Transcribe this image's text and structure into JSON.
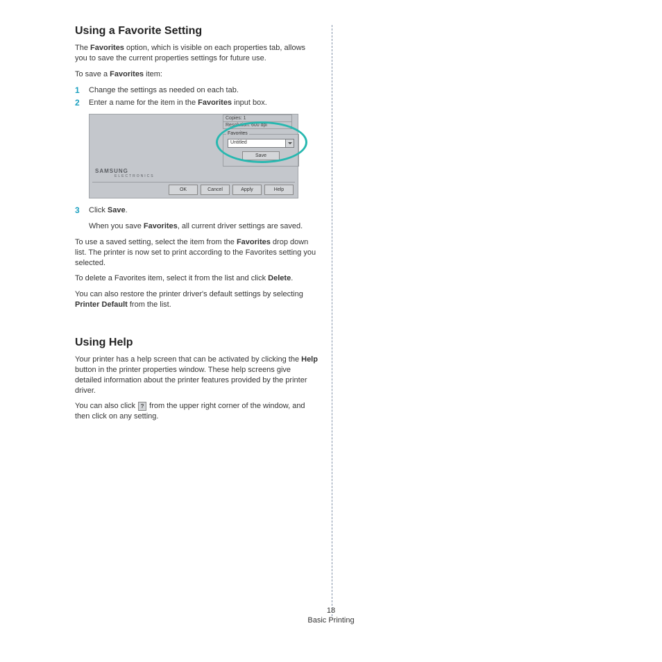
{
  "section1": {
    "heading": "Using a Favorite Setting",
    "intro_pre": "The ",
    "intro_bold": "Favorites",
    "intro_post": " option, which is visible on each properties tab, allows you to save the current properties settings for future use.",
    "to_save_pre": "To save a ",
    "to_save_bold": "Favorites",
    "to_save_post": " item:",
    "step1_num": "1",
    "step1_text": "Change the settings as needed on each tab.",
    "step2_num": "2",
    "step2_pre": "Enter a name for the item in the ",
    "step2_bold": "Favorites",
    "step2_post": " input box.",
    "step3_num": "3",
    "step3_pre": "Click ",
    "step3_bold": "Save",
    "step3_post": ".",
    "step3b_pre": "When you save ",
    "step3b_bold": "Favorites",
    "step3b_post": ", all current driver settings are saved.",
    "use_pre": "To use a saved setting, select the item from the ",
    "use_bold": "Favorites",
    "use_post": " drop down list. The printer is now set to print according to the Favorites setting you selected.",
    "delete_pre": "To delete a Favorites item, select it from the list and click ",
    "delete_bold": "Delete",
    "delete_post": ".",
    "restore_pre": "You can also restore the printer driver's default settings by selecting ",
    "restore_bold": "Printer Default",
    "restore_post": " from the list."
  },
  "mock": {
    "info_copies": "Copies: 1",
    "info_res": "Resolution: 600 dpi",
    "fav_legend": "Favorites",
    "combo_value": "Untitled",
    "save_btn": "Save",
    "brand": "SAMSUNG",
    "brand_sub": "ELECTRONICS",
    "btn_ok": "OK",
    "btn_cancel": "Cancel",
    "btn_apply": "Apply",
    "btn_help": "Help",
    "colors": {
      "dialog_bg": "#c4c7cc",
      "highlight": "#28b8b0",
      "step_num": "#1aa0c0"
    }
  },
  "section2": {
    "heading": "Using Help",
    "p1_pre": "Your printer has a help screen that can be activated by clicking the ",
    "p1_bold": "Help",
    "p1_post": " button in the printer properties window. These help screens give detailed information about the printer features provided by the printer driver.",
    "p2_pre": "You can also click ",
    "p2_icon": "?",
    "p2_post": " from the upper right corner of the window, and then click on any setting."
  },
  "footer": {
    "page_num": "18",
    "section": "Basic Printing"
  }
}
